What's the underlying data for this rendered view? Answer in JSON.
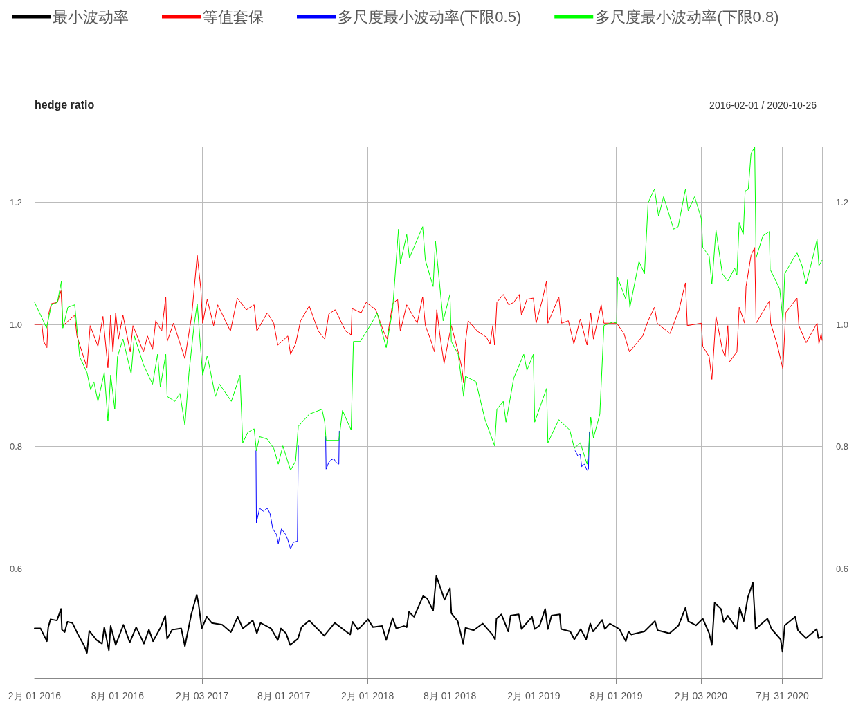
{
  "chart_data": {
    "type": "line",
    "title": "hedge ratio",
    "subtitle": "2016-02-01 / 2020-10-26",
    "xlim": [
      "2016-02-01",
      "2020-10-26"
    ],
    "xticks": [
      {
        "value": "2016-02-01",
        "label": "2月 01 2016"
      },
      {
        "value": "2016-08-01",
        "label": "8月 01 2016"
      },
      {
        "value": "2017-02-03",
        "label": "2月 03 2017"
      },
      {
        "value": "2017-08-01",
        "label": "8月 01 2017"
      },
      {
        "value": "2018-02-01",
        "label": "2月 01 2018"
      },
      {
        "value": "2018-08-01",
        "label": "8月 01 2018"
      },
      {
        "value": "2019-02-01",
        "label": "2月 01 2019"
      },
      {
        "value": "2019-08-01",
        "label": "8月 01 2019"
      },
      {
        "value": "2020-02-03",
        "label": "2月 03 2020"
      },
      {
        "value": "2020-07-31",
        "label": "7月 31 2020"
      }
    ],
    "ylim": [
      0.42,
      1.29
    ],
    "yticks": [
      0.6,
      0.8,
      {
        "value": 1.0,
        "label": "1.0"
      },
      1.2
    ],
    "y2lim": [
      0.42,
      1.29
    ],
    "y2ticks": [
      0.6,
      0.8,
      {
        "value": 1.0,
        "label": "1.0"
      },
      1.2
    ],
    "grid": true,
    "legend": "top",
    "marker": "none",
    "series": [
      {
        "name": "最小波动率",
        "color": "#000000",
        "x": [
          "2016-02-01",
          "2016-02-14",
          "2016-02-28",
          "2016-03-02",
          "2016-03-07",
          "2016-03-21",
          "2016-03-30",
          "2016-04-01",
          "2016-04-07",
          "2016-04-13",
          "2016-04-24",
          "2016-05-05",
          "2016-05-19",
          "2016-05-26",
          "2016-05-31",
          "2016-06-16",
          "2016-06-28",
          "2016-07-03",
          "2016-07-13",
          "2016-07-17",
          "2016-07-28",
          "2016-08-14",
          "2016-08-28",
          "2016-09-11",
          "2016-09-28",
          "2016-10-09",
          "2016-10-18",
          "2016-11-04",
          "2016-11-14",
          "2016-11-18",
          "2016-11-29",
          "2016-12-19",
          "2016-12-27",
          "2017-01-10",
          "2017-01-22",
          "2017-01-26",
          "2017-02-02",
          "2017-02-13",
          "2017-02-24",
          "2017-03-19",
          "2017-04-07",
          "2017-04-22",
          "2017-05-03",
          "2017-05-25",
          "2017-06-03",
          "2017-06-11",
          "2017-07-04",
          "2017-07-19",
          "2017-07-26",
          "2017-08-06",
          "2017-08-15",
          "2017-09-01",
          "2017-09-09",
          "2017-09-26",
          "2017-10-29",
          "2017-11-21",
          "2017-12-25",
          "2017-12-30",
          "2018-01-11",
          "2018-02-02",
          "2018-02-13",
          "2018-03-05",
          "2018-03-14",
          "2018-03-28",
          "2018-04-05",
          "2018-04-22",
          "2018-04-28",
          "2018-05-03",
          "2018-05-14",
          "2018-06-03",
          "2018-06-12",
          "2018-06-25",
          "2018-07-02",
          "2018-07-20",
          "2018-08-01",
          "2018-08-04",
          "2018-08-18",
          "2018-08-30",
          "2018-09-04",
          "2018-09-22",
          "2018-10-12",
          "2018-11-02",
          "2018-11-08",
          "2018-11-11",
          "2018-11-22",
          "2018-12-07",
          "2018-12-12",
          "2018-12-30",
          "2019-01-05",
          "2019-01-28",
          "2019-02-03",
          "2019-02-14",
          "2019-02-26",
          "2019-03-04",
          "2019-03-12",
          "2019-03-30",
          "2019-04-02",
          "2019-04-22",
          "2019-05-01",
          "2019-05-15",
          "2019-05-27",
          "2019-06-05",
          "2019-06-11",
          "2019-07-01",
          "2019-07-07",
          "2019-07-18",
          "2019-08-08",
          "2019-08-22",
          "2019-08-28",
          "2019-09-03",
          "2019-10-02",
          "2019-10-25",
          "2019-10-31",
          "2019-11-26",
          "2019-12-16",
          "2019-12-31",
          "2020-01-06",
          "2020-01-23",
          "2020-02-07",
          "2020-02-21",
          "2020-02-27",
          "2020-03-04",
          "2020-03-18",
          "2020-03-24",
          "2020-04-02",
          "2020-04-22",
          "2020-04-28",
          "2020-05-07",
          "2020-05-16",
          "2020-05-27",
          "2020-06-02",
          "2020-06-28",
          "2020-07-07",
          "2020-07-27",
          "2020-07-31",
          "2020-08-05",
          "2020-08-28",
          "2020-09-03",
          "2020-09-21",
          "2020-10-14",
          "2020-10-18",
          "2020-10-26"
        ],
        "values": [
          0.502,
          0.502,
          0.481,
          0.504,
          0.517,
          0.515,
          0.534,
          0.5,
          0.496,
          0.513,
          0.511,
          0.494,
          0.475,
          0.462,
          0.498,
          0.483,
          0.477,
          0.504,
          0.466,
          0.506,
          0.475,
          0.508,
          0.479,
          0.504,
          0.477,
          0.5,
          0.481,
          0.504,
          0.523,
          0.485,
          0.5,
          0.502,
          0.473,
          0.525,
          0.557,
          0.542,
          0.502,
          0.521,
          0.511,
          0.508,
          0.496,
          0.521,
          0.502,
          0.515,
          0.494,
          0.511,
          0.502,
          0.483,
          0.502,
          0.494,
          0.475,
          0.485,
          0.504,
          0.515,
          0.49,
          0.511,
          0.492,
          0.513,
          0.5,
          0.517,
          0.504,
          0.506,
          0.483,
          0.519,
          0.502,
          0.506,
          0.504,
          0.529,
          0.521,
          0.555,
          0.551,
          0.531,
          0.588,
          0.549,
          0.568,
          0.527,
          0.514,
          0.477,
          0.503,
          0.499,
          0.51,
          0.492,
          0.484,
          0.518,
          0.525,
          0.497,
          0.523,
          0.525,
          0.501,
          0.521,
          0.501,
          0.507,
          0.534,
          0.501,
          0.523,
          0.525,
          0.501,
          0.497,
          0.484,
          0.501,
          0.484,
          0.51,
          0.497,
          0.516,
          0.501,
          0.51,
          0.501,
          0.481,
          0.497,
          0.492,
          0.497,
          0.514,
          0.499,
          0.494,
          0.507,
          0.536,
          0.514,
          0.507,
          0.518,
          0.494,
          0.475,
          0.544,
          0.534,
          0.512,
          0.523,
          0.501,
          0.536,
          0.514,
          0.553,
          0.577,
          0.501,
          0.518,
          0.501,
          0.484,
          0.464,
          0.507,
          0.521,
          0.499,
          0.486,
          0.501,
          0.486,
          0.488
        ]
      },
      {
        "name": "等值套保",
        "color": "#ff0000",
        "x": [
          "2016-02-01",
          "2016-02-17",
          "2016-02-21",
          "2016-02-28",
          "2016-03-02",
          "2016-03-09",
          "2016-03-22",
          "2016-03-30",
          "2016-04-03",
          "2016-04-29",
          "2016-05-04",
          "2016-05-26",
          "2016-06-02",
          "2016-06-19",
          "2016-06-30",
          "2016-07-11",
          "2016-07-17",
          "2016-07-22",
          "2016-07-28",
          "2016-08-03",
          "2016-08-13",
          "2016-08-29",
          "2016-09-04",
          "2016-09-27",
          "2016-10-06",
          "2016-10-17",
          "2016-10-24",
          "2016-11-06",
          "2016-11-15",
          "2016-11-18",
          "2016-12-02",
          "2016-12-27",
          "2017-01-11",
          "2017-01-23",
          "2017-01-31",
          "2017-02-04",
          "2017-02-14",
          "2017-02-28",
          "2017-03-09",
          "2017-04-06",
          "2017-04-21",
          "2017-05-11",
          "2017-05-28",
          "2017-06-03",
          "2017-06-26",
          "2017-07-10",
          "2017-07-19",
          "2017-08-10",
          "2017-08-16",
          "2017-08-27",
          "2017-09-07",
          "2017-09-26",
          "2017-10-16",
          "2017-10-30",
          "2017-11-08",
          "2017-11-22",
          "2017-12-15",
          "2017-12-27",
          "2017-12-29",
          "2018-01-18",
          "2018-01-29",
          "2018-02-19",
          "2018-03-08",
          "2018-03-16",
          "2018-03-28",
          "2018-04-08",
          "2018-04-14",
          "2018-04-28",
          "2018-05-21",
          "2018-06-02",
          "2018-06-08",
          "2018-06-19",
          "2018-06-28",
          "2018-07-03",
          "2018-07-11",
          "2018-07-19",
          "2018-07-28",
          "2018-08-04",
          "2018-08-19",
          "2018-08-27",
          "2018-08-31",
          "2018-09-04",
          "2018-09-10",
          "2018-09-30",
          "2018-10-20",
          "2018-10-28",
          "2018-11-03",
          "2018-11-07",
          "2018-11-12",
          "2018-11-26",
          "2018-12-08",
          "2018-12-19",
          "2018-12-31",
          "2019-01-05",
          "2019-01-17",
          "2019-01-31",
          "2019-02-06",
          "2019-02-20",
          "2019-03-01",
          "2019-03-04",
          "2019-03-28",
          "2019-04-03",
          "2019-04-18",
          "2019-04-30",
          "2019-05-14",
          "2019-05-29",
          "2019-06-06",
          "2019-06-12",
          "2019-06-29",
          "2019-07-05",
          "2019-08-02",
          "2019-08-18",
          "2019-08-30",
          "2019-09-28",
          "2019-10-10",
          "2019-10-24",
          "2019-10-30",
          "2019-11-27",
          "2019-12-17",
          "2019-12-26",
          "2019-12-31",
          "2020-01-04",
          "2020-02-04",
          "2020-02-07",
          "2020-02-21",
          "2020-02-27",
          "2020-03-07",
          "2020-03-21",
          "2020-03-27",
          "2020-04-02",
          "2020-04-05",
          "2020-04-22",
          "2020-04-27",
          "2020-05-09",
          "2020-05-12",
          "2020-05-23",
          "2020-05-31",
          "2020-06-03",
          "2020-07-02",
          "2020-07-05",
          "2020-07-19",
          "2020-08-01",
          "2020-08-07",
          "2020-09-01",
          "2020-09-05",
          "2020-09-21",
          "2020-10-15",
          "2020-10-19",
          "2020-10-24",
          "2020-10-26"
        ],
        "values": [
          1.0,
          1.0,
          0.972,
          0.962,
          1.015,
          1.034,
          1.036,
          1.055,
          0.998,
          1.015,
          0.981,
          0.929,
          0.998,
          0.964,
          1.013,
          0.929,
          1.015,
          0.955,
          1.019,
          0.976,
          1.015,
          0.955,
          0.998,
          0.955,
          0.981,
          0.959,
          1.006,
          0.989,
          1.045,
          0.972,
          1.002,
          0.944,
          1.015,
          1.113,
          1.058,
          1.002,
          1.041,
          0.998,
          1.032,
          0.989,
          1.043,
          1.024,
          1.032,
          0.989,
          1.019,
          1.002,
          0.966,
          0.981,
          0.951,
          0.968,
          1.006,
          1.03,
          0.989,
          0.976,
          1.017,
          1.024,
          0.989,
          0.983,
          1.026,
          1.019,
          1.036,
          1.024,
          0.989,
          0.976,
          1.034,
          1.041,
          0.989,
          1.032,
          1.002,
          1.045,
          0.998,
          0.976,
          0.955,
          1.024,
          0.976,
          0.936,
          0.972,
          0.998,
          0.955,
          0.929,
          0.904,
          0.972,
          1.006,
          0.989,
          0.979,
          0.968,
          0.998,
          0.966,
          1.036,
          1.049,
          1.032,
          1.036,
          1.049,
          1.015,
          1.041,
          1.043,
          1.002,
          1.041,
          1.071,
          1.002,
          1.045,
          1.002,
          1.006,
          0.968,
          1.009,
          0.966,
          1.019,
          0.976,
          1.032,
          1.002,
          1.002,
          0.985,
          0.955,
          0.981,
          1.006,
          1.028,
          1.002,
          0.985,
          1.024,
          1.053,
          1.068,
          0.998,
          1.002,
          0.964,
          0.947,
          0.91,
          1.013,
          0.959,
          0.947,
          0.998,
          0.938,
          0.955,
          1.028,
          1.002,
          1.062,
          1.113,
          1.126,
          1.002,
          1.038,
          1.002,
          0.968,
          0.927,
          1.019,
          1.043,
          0.998,
          0.97,
          1.002,
          0.968,
          0.985,
          0.974
        ]
      },
      {
        "name": "多尺度最小波动率(下限0.5)",
        "color": "#0000ff",
        "x": [
          "2017-06-01",
          "2017-06-02",
          "2017-06-09",
          "2017-06-17",
          "2017-06-26",
          "2017-07-02",
          "2017-07-08",
          "2017-07-16",
          "2017-07-20",
          "2017-07-27",
          "2017-08-05",
          "2017-08-10",
          "2017-08-16",
          "2017-08-22",
          "2017-08-31",
          "2017-09-02",
          "2017-10-01",
          "2017-11-01",
          "2017-11-02",
          "2017-11-08",
          "2017-11-13",
          "2017-11-19",
          "2017-11-24",
          "2017-11-30",
          "2017-12-01",
          "2018-12-01",
          "2019-05-03",
          "2019-05-09",
          "2019-05-14",
          "2019-05-17",
          "2019-05-23",
          "2019-05-29",
          "2019-06-01",
          "2019-06-03"
        ],
        "values": [
          0.793,
          0.675,
          0.699,
          0.694,
          0.699,
          0.69,
          0.665,
          0.656,
          0.641,
          0.665,
          0.656,
          0.647,
          0.632,
          0.643,
          0.645,
          0.801,
          null,
          0.816,
          0.763,
          0.774,
          0.778,
          0.78,
          0.774,
          0.771,
          0.825,
          null,
          0.793,
          0.784,
          0.788,
          0.767,
          0.771,
          0.761,
          0.763,
          0.823
        ]
      },
      {
        "name": "多尺度最小波动率(下限0.8)",
        "color": "#00ff00",
        "x": [
          "2016-02-01",
          "2016-02-20",
          "2016-02-27",
          "2016-03-09",
          "2016-03-22",
          "2016-03-31",
          "2016-04-03",
          "2016-04-14",
          "2016-04-29",
          "2016-05-10",
          "2016-05-26",
          "2016-06-03",
          "2016-06-10",
          "2016-06-19",
          "2016-07-03",
          "2016-07-11",
          "2016-07-17",
          "2016-07-26",
          "2016-08-01",
          "2016-08-13",
          "2016-08-31",
          "2016-09-07",
          "2016-09-27",
          "2016-10-17",
          "2016-10-28",
          "2016-11-03",
          "2016-11-15",
          "2016-11-18",
          "2016-12-05",
          "2016-12-16",
          "2016-12-27",
          "2017-01-05",
          "2017-01-16",
          "2017-01-23",
          "2017-02-04",
          "2017-02-14",
          "2017-03-04",
          "2017-03-13",
          "2017-04-08",
          "2017-04-27",
          "2017-05-03",
          "2017-05-14",
          "2017-05-28",
          "2017-06-02",
          "2017-06-09",
          "2017-06-26",
          "2017-07-10",
          "2017-07-20",
          "2017-07-30",
          "2017-08-16",
          "2017-08-27",
          "2017-09-02",
          "2017-09-26",
          "2017-10-24",
          "2017-10-30",
          "2017-11-02",
          "2017-11-30",
          "2017-12-08",
          "2017-12-27",
          "2018-01-01",
          "2018-01-16",
          "2018-02-10",
          "2018-02-22",
          "2018-03-14",
          "2018-03-28",
          "2018-04-10",
          "2018-04-14",
          "2018-04-28",
          "2018-05-04",
          "2018-06-02",
          "2018-06-08",
          "2018-06-25",
          "2018-06-30",
          "2018-07-17",
          "2018-08-01",
          "2018-08-04",
          "2018-08-19",
          "2018-08-31",
          "2018-09-04",
          "2018-09-27",
          "2018-10-17",
          "2018-11-07",
          "2018-11-12",
          "2018-11-26",
          "2018-12-02",
          "2018-12-19",
          "2019-01-10",
          "2019-01-17",
          "2019-01-31",
          "2019-02-03",
          "2019-03-01",
          "2019-03-04",
          "2019-03-28",
          "2019-04-21",
          "2019-05-01",
          "2019-05-14",
          "2019-05-29",
          "2019-06-01",
          "2019-06-06",
          "2019-06-12",
          "2019-06-26",
          "2019-07-05",
          "2019-07-25",
          "2019-08-02",
          "2019-08-04",
          "2019-08-22",
          "2019-08-26",
          "2019-08-31",
          "2019-09-20",
          "2019-10-02",
          "2019-10-10",
          "2019-10-24",
          "2019-11-02",
          "2019-11-13",
          "2019-12-05",
          "2019-12-15",
          "2019-12-31",
          "2020-01-06",
          "2020-01-20",
          "2020-02-04",
          "2020-02-07",
          "2020-02-21",
          "2020-02-27",
          "2020-03-07",
          "2020-03-21",
          "2020-04-02",
          "2020-04-17",
          "2020-04-22",
          "2020-04-27",
          "2020-05-06",
          "2020-05-10",
          "2020-05-17",
          "2020-05-23",
          "2020-05-31",
          "2020-06-03",
          "2020-06-18",
          "2020-07-02",
          "2020-07-04",
          "2020-07-25",
          "2020-08-01",
          "2020-08-05",
          "2020-08-25",
          "2020-09-01",
          "2020-09-12",
          "2020-09-21",
          "2020-10-08",
          "2020-10-15",
          "2020-10-19",
          "2020-10-26"
        ],
        "values": [
          1.036,
          1.006,
          0.994,
          1.032,
          1.036,
          1.071,
          0.994,
          1.028,
          1.032,
          0.947,
          0.921,
          0.893,
          0.906,
          0.874,
          0.921,
          0.842,
          0.917,
          0.861,
          0.947,
          0.976,
          0.919,
          0.981,
          0.934,
          0.902,
          0.951,
          0.897,
          0.951,
          0.882,
          0.874,
          0.887,
          0.835,
          0.921,
          0.998,
          1.034,
          0.917,
          0.949,
          0.882,
          0.902,
          0.874,
          0.917,
          0.806,
          0.823,
          0.829,
          0.793,
          0.816,
          0.812,
          0.797,
          0.771,
          0.801,
          0.761,
          0.776,
          0.833,
          0.853,
          0.861,
          0.84,
          0.81,
          0.81,
          0.859,
          0.827,
          0.972,
          0.972,
          1.002,
          1.019,
          0.962,
          1.024,
          1.156,
          1.1,
          1.147,
          1.109,
          1.16,
          1.105,
          1.062,
          1.137,
          1.006,
          1.049,
          0.972,
          0.951,
          0.882,
          0.915,
          0.906,
          0.844,
          0.801,
          0.861,
          0.874,
          0.84,
          0.912,
          0.951,
          0.925,
          0.951,
          0.84,
          0.895,
          0.806,
          0.844,
          0.827,
          0.797,
          0.806,
          0.771,
          0.788,
          0.848,
          0.814,
          0.853,
          0.998,
          1.004,
          1.002,
          1.077,
          1.041,
          1.073,
          1.028,
          1.103,
          1.083,
          1.199,
          1.222,
          1.177,
          1.209,
          1.156,
          1.16,
          1.222,
          1.186,
          1.209,
          1.173,
          1.126,
          1.112,
          1.066,
          1.154,
          1.083,
          1.071,
          1.092,
          1.081,
          1.167,
          1.147,
          1.218,
          1.222,
          1.28,
          1.29,
          1.109,
          1.145,
          1.152,
          1.09,
          1.058,
          1.006,
          1.083,
          1.109,
          1.117,
          1.096,
          1.066,
          1.117,
          1.139,
          1.096,
          1.105
        ]
      }
    ]
  }
}
